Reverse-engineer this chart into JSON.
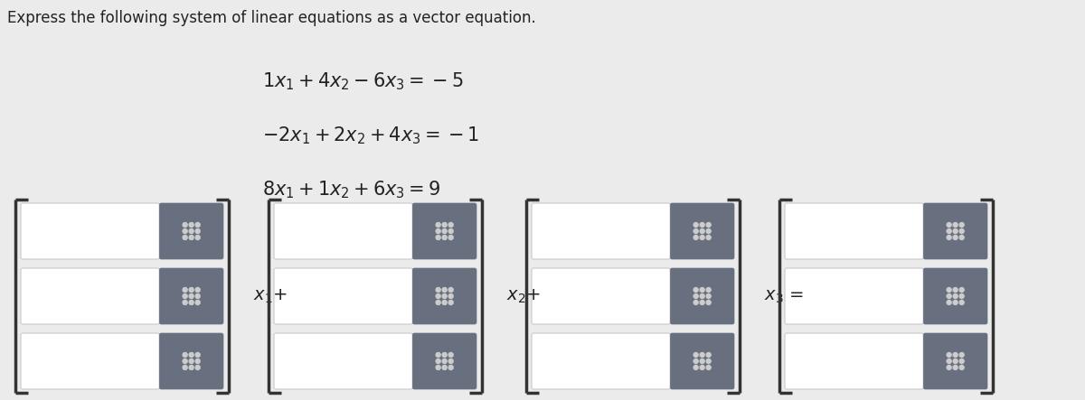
{
  "title": "Express the following system of linear equations as a vector equation.",
  "eq_latex": [
    "$1x_1 + 4x_2 - 6x_3 = -5$",
    "$-2x_1 + 2x_2 + 4x_3 = -1$",
    "$8x_1 + 1x_2 + 6x_3 = 9$"
  ],
  "background_color": "#ebebeb",
  "white_box_color": "#ffffff",
  "dark_box_color": "#687080",
  "bracket_color": "#333333",
  "text_color": "#222222",
  "title_fontsize": 12,
  "eq_fontsize": 15,
  "label_fontsize": 14,
  "vector_labels": [
    "$x_1$+",
    "$x_2$+",
    "$x_3$ ="
  ],
  "num_vectors": 4,
  "num_rows": 3,
  "dot_color": "#cccccc",
  "box_border_color": "#c8c8c8"
}
